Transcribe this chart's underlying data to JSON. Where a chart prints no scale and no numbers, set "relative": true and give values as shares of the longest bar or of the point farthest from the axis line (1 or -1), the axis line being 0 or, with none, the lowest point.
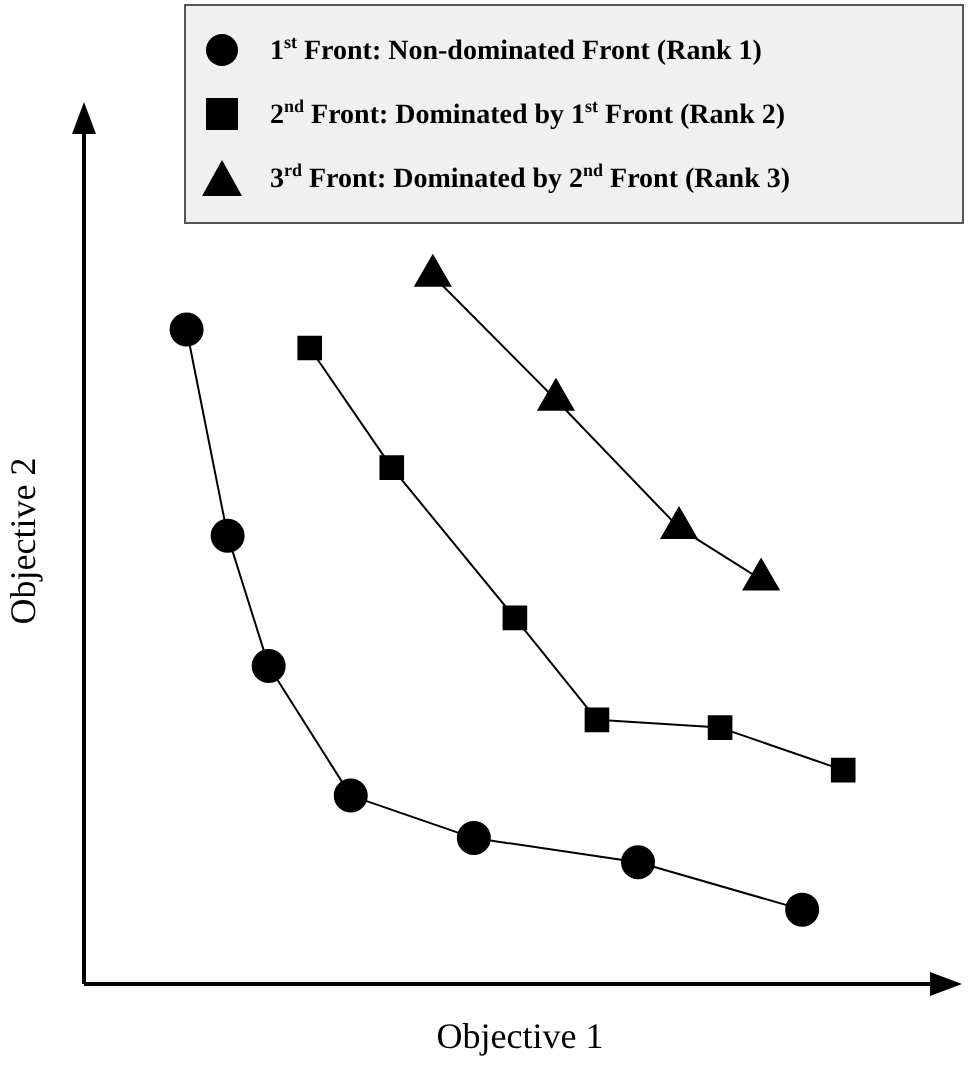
{
  "chart_data": {
    "type": "line",
    "xlabel": "Objective 1",
    "ylabel": "Objective 2",
    "relative": true,
    "legend": "top right",
    "grid": false,
    "categories": [
      null,
      null,
      null,
      null,
      null,
      null,
      null,
      null,
      null,
      null,
      null,
      null,
      null,
      null,
      null,
      null,
      null
    ],
    "series": [
      {
        "name": "1$^{st}$ Front: Non-dominated Front (Rank 1)",
        "color": "#000000",
        "marker": "circle",
        "values": [
          0.924,
          0.633,
          0.449,
          null,
          0.266,
          null,
          null,
          0.206,
          null,
          null,
          null,
          0.172,
          null,
          null,
          null,
          0.105,
          null
        ]
      },
      {
        "name": "2$^{nd}$ Front: Dominated by 1$^{st}$ Front (Rank 2)",
        "color": "#000000",
        "marker": "square",
        "values": [
          null,
          null,
          null,
          0.898,
          null,
          0.729,
          null,
          null,
          0.517,
          null,
          0.373,
          null,
          null,
          0.362,
          null,
          null,
          0.302
        ]
      },
      {
        "name": "3$^{rd}$ Front: Dominated by 2$^{nd}$ Front (Rank 3)",
        "color": "#000000",
        "marker": "triangle",
        "values": [
          null,
          null,
          null,
          null,
          null,
          null,
          1,
          null,
          null,
          0.825,
          null,
          null,
          0.644,
          null,
          0.571,
          null,
          null
        ]
      }
    ]
  }
}
